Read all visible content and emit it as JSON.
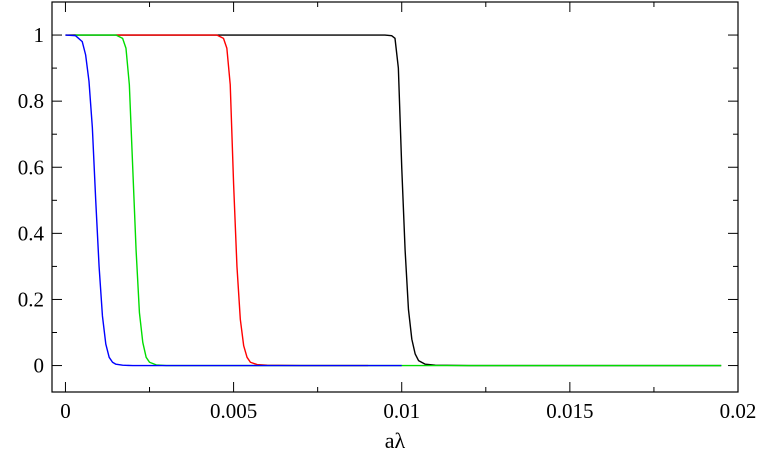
{
  "chart_data": {
    "type": "line",
    "title": "",
    "xlabel": "aλ",
    "ylabel": "",
    "xlim": [
      -0.0004,
      0.02
    ],
    "ylim": [
      -0.08,
      1.1
    ],
    "xticks": [
      0,
      0.005,
      0.01,
      0.015,
      0.02
    ],
    "xtick_labels": [
      "0",
      "0.005",
      "0.01",
      "0.015",
      "0.02"
    ],
    "yticks": [
      0,
      0.2,
      0.4,
      0.6,
      0.8,
      1
    ],
    "ytick_labels": [
      "0",
      "0.2",
      "0.4",
      "0.6",
      "0.8",
      "1"
    ],
    "grid": false,
    "legend": "none",
    "series": [
      {
        "color": "#000000",
        "x": [
          0,
          0.002,
          0.004,
          0.006,
          0.008,
          0.009,
          0.0095,
          0.0097,
          0.0098,
          0.0099,
          0.01,
          0.0101,
          0.0102,
          0.0103,
          0.0104,
          0.0105,
          0.0107,
          0.011,
          0.012,
          0.015,
          0.0195
        ],
        "y": [
          1,
          1,
          1,
          1,
          1,
          1,
          1,
          0.998,
          0.99,
          0.9,
          0.6,
          0.35,
          0.17,
          0.08,
          0.035,
          0.015,
          0.004,
          0.001,
          0,
          0,
          0
        ]
      },
      {
        "color": "#ff0000",
        "x": [
          0.0015,
          0.002,
          0.003,
          0.004,
          0.0045,
          0.0047,
          0.0048,
          0.0049,
          0.005,
          0.0051,
          0.0052,
          0.0053,
          0.0054,
          0.0055,
          0.0057,
          0.006,
          0.007,
          0.008,
          0.009
        ],
        "y": [
          1,
          1,
          1,
          1,
          1,
          0.99,
          0.96,
          0.85,
          0.55,
          0.3,
          0.14,
          0.06,
          0.025,
          0.01,
          0.003,
          0.001,
          0,
          0,
          0
        ]
      },
      {
        "color": "#00dd00",
        "x": [
          0.0003,
          0.001,
          0.0015,
          0.0017,
          0.0018,
          0.0019,
          0.002,
          0.0021,
          0.0022,
          0.0023,
          0.0024,
          0.0025,
          0.0027,
          0.003,
          0.004,
          0.006,
          0.008,
          0.01,
          0.011,
          0.015,
          0.0195
        ],
        "y": [
          1,
          1,
          1,
          0.99,
          0.96,
          0.85,
          0.6,
          0.35,
          0.16,
          0.07,
          0.025,
          0.01,
          0.002,
          0,
          0,
          0,
          0,
          0,
          0,
          0,
          0
        ]
      },
      {
        "color": "#0000ff",
        "x": [
          0,
          0.0003,
          0.0005,
          0.0006,
          0.0007,
          0.0008,
          0.0009,
          0.001,
          0.0011,
          0.0012,
          0.0013,
          0.0014,
          0.0015,
          0.0017,
          0.002,
          0.003,
          0.005,
          0.007,
          0.009,
          0.01
        ],
        "y": [
          1,
          0.998,
          0.98,
          0.94,
          0.86,
          0.72,
          0.5,
          0.3,
          0.15,
          0.065,
          0.025,
          0.01,
          0.004,
          0.001,
          0,
          0,
          0,
          0,
          0,
          0
        ]
      }
    ]
  }
}
